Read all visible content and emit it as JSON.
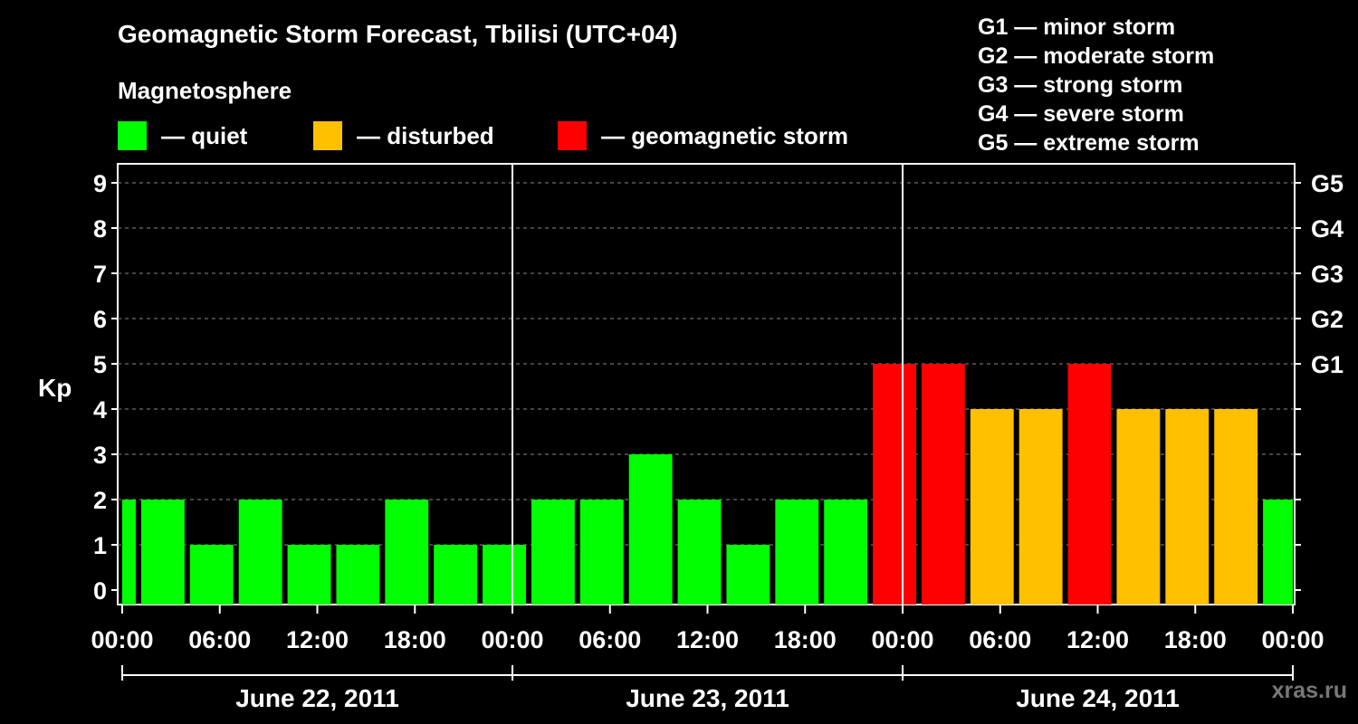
{
  "title": "Geomagnetic Storm Forecast, Tbilisi (UTC+04)",
  "magnetosphere_label": "Magnetosphere",
  "legend": [
    {
      "label": "— quiet",
      "color": "#00ff00"
    },
    {
      "label": "— disturbed",
      "color": "#ffc000"
    },
    {
      "label": "— geomagnetic storm",
      "color": "#ff0000"
    }
  ],
  "g_scale": [
    "G1 — minor storm",
    "G2 — moderate storm",
    "G3 — strong storm",
    "G4 — severe storm",
    "G5 — extreme storm"
  ],
  "watermark": "xras.ru",
  "chart_data": {
    "type": "bar",
    "ylabel": "Kp",
    "ylim": [
      0,
      9
    ],
    "yticks": [
      "0",
      "1",
      "2",
      "3",
      "4",
      "5",
      "6",
      "7",
      "8",
      "9"
    ],
    "right_labels": [
      {
        "kp": 5,
        "label": "G1"
      },
      {
        "kp": 6,
        "label": "G2"
      },
      {
        "kp": 7,
        "label": "G3"
      },
      {
        "kp": 8,
        "label": "G4"
      },
      {
        "kp": 9,
        "label": "G5"
      }
    ],
    "xtick_labels": [
      "00:00",
      "06:00",
      "12:00",
      "18:00",
      "00:00",
      "06:00",
      "12:00",
      "18:00",
      "00:00",
      "06:00",
      "12:00",
      "18:00",
      "00:00"
    ],
    "days": [
      "June 22, 2011",
      "June 23, 2011",
      "June 24, 2011"
    ],
    "x_range_hours": [
      0,
      72
    ],
    "grid": "dashed horizontal",
    "legend_position": "top",
    "bars": [
      {
        "start_hour": 0,
        "end_hour": 1,
        "kp": 2,
        "level": "quiet"
      },
      {
        "start_hour": 1,
        "end_hour": 4,
        "kp": 2,
        "level": "quiet"
      },
      {
        "start_hour": 4,
        "end_hour": 7,
        "kp": 1,
        "level": "quiet"
      },
      {
        "start_hour": 7,
        "end_hour": 10,
        "kp": 2,
        "level": "quiet"
      },
      {
        "start_hour": 10,
        "end_hour": 13,
        "kp": 1,
        "level": "quiet"
      },
      {
        "start_hour": 13,
        "end_hour": 16,
        "kp": 1,
        "level": "quiet"
      },
      {
        "start_hour": 16,
        "end_hour": 19,
        "kp": 2,
        "level": "quiet"
      },
      {
        "start_hour": 19,
        "end_hour": 22,
        "kp": 1,
        "level": "quiet"
      },
      {
        "start_hour": 22,
        "end_hour": 25,
        "kp": 1,
        "level": "quiet"
      },
      {
        "start_hour": 25,
        "end_hour": 28,
        "kp": 2,
        "level": "quiet"
      },
      {
        "start_hour": 28,
        "end_hour": 31,
        "kp": 2,
        "level": "quiet"
      },
      {
        "start_hour": 31,
        "end_hour": 34,
        "kp": 3,
        "level": "quiet"
      },
      {
        "start_hour": 34,
        "end_hour": 37,
        "kp": 2,
        "level": "quiet"
      },
      {
        "start_hour": 37,
        "end_hour": 40,
        "kp": 1,
        "level": "quiet"
      },
      {
        "start_hour": 40,
        "end_hour": 43,
        "kp": 2,
        "level": "quiet"
      },
      {
        "start_hour": 43,
        "end_hour": 46,
        "kp": 2,
        "level": "quiet"
      },
      {
        "start_hour": 46,
        "end_hour": 49,
        "kp": 5,
        "level": "storm"
      },
      {
        "start_hour": 49,
        "end_hour": 52,
        "kp": 5,
        "level": "storm"
      },
      {
        "start_hour": 52,
        "end_hour": 55,
        "kp": 4,
        "level": "disturbed"
      },
      {
        "start_hour": 55,
        "end_hour": 58,
        "kp": 4,
        "level": "disturbed"
      },
      {
        "start_hour": 58,
        "end_hour": 61,
        "kp": 5,
        "level": "storm"
      },
      {
        "start_hour": 61,
        "end_hour": 64,
        "kp": 4,
        "level": "disturbed"
      },
      {
        "start_hour": 64,
        "end_hour": 67,
        "kp": 4,
        "level": "disturbed"
      },
      {
        "start_hour": 67,
        "end_hour": 70,
        "kp": 4,
        "level": "disturbed"
      },
      {
        "start_hour": 70,
        "end_hour": 72,
        "kp": 2,
        "level": "quiet"
      }
    ]
  }
}
